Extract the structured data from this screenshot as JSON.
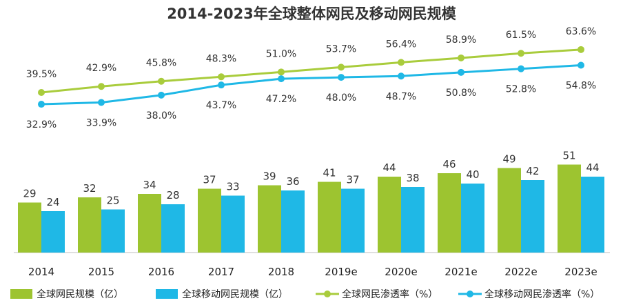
{
  "chart_data": {
    "type": "bar",
    "title": "2014-2023年全球整体网民及移动网民规模",
    "categories": [
      "2014",
      "2015",
      "2016",
      "2017",
      "2018",
      "2019e",
      "2020e",
      "2021e",
      "2022e",
      "2023e"
    ],
    "series": [
      {
        "name": "全球网民规模（亿）",
        "type": "bar",
        "color": "#9dc430",
        "values": [
          29,
          32,
          34,
          37,
          39,
          41,
          44,
          46,
          49,
          51
        ]
      },
      {
        "name": "全球移动网民规模（亿）",
        "type": "bar",
        "color": "#1fb8e6",
        "values": [
          24,
          25,
          28,
          33,
          36,
          37,
          38,
          40,
          42,
          44
        ]
      },
      {
        "name": "全球网民渗透率（%）",
        "type": "line",
        "color": "#a9cc3c",
        "values": [
          39.5,
          42.9,
          45.8,
          48.3,
          51.0,
          53.7,
          56.4,
          58.9,
          61.5,
          63.6
        ],
        "labels": [
          "39.5%",
          "42.9%",
          "45.8%",
          "48.3%",
          "51.0%",
          "53.7%",
          "56.4%",
          "58.9%",
          "61.5%",
          "63.6%"
        ]
      },
      {
        "name": "全球移动网民渗透率（%）",
        "type": "line",
        "color": "#1fb8e6",
        "values": [
          32.9,
          33.9,
          38.0,
          43.7,
          47.2,
          48.0,
          48.7,
          50.8,
          52.8,
          54.8
        ],
        "labels": [
          "32.9%",
          "33.9%",
          "38.0%",
          "43.7%",
          "47.2%",
          "48.0%",
          "48.7%",
          "50.8%",
          "52.8%",
          "54.8%"
        ]
      }
    ],
    "legend_position": "bottom",
    "grid": false
  }
}
